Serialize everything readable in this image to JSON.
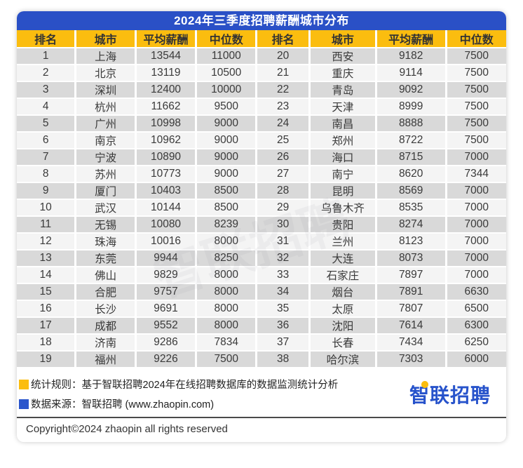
{
  "title": "2024年三季度招聘薪酬城市分布",
  "watermark": "智联招聘",
  "colors": {
    "title_bar_blue": "#2A50C6",
    "header_yellow": "#FBBD0F",
    "row_gray": "#D9D9D9",
    "row_light": "#F4F4F4",
    "logo_blue": "#2753CB"
  },
  "table": {
    "headers": [
      "排名",
      "城市",
      "平均薪酬",
      "中位数",
      "排名",
      "城市",
      "平均薪酬",
      "中位数"
    ],
    "rows": [
      [
        "1",
        "上海",
        "13544",
        "11000",
        "20",
        "西安",
        "9182",
        "7500"
      ],
      [
        "2",
        "北京",
        "13119",
        "10500",
        "21",
        "重庆",
        "9114",
        "7500"
      ],
      [
        "3",
        "深圳",
        "12400",
        "10000",
        "22",
        "青岛",
        "9092",
        "7500"
      ],
      [
        "4",
        "杭州",
        "11662",
        "9500",
        "23",
        "天津",
        "8999",
        "7500"
      ],
      [
        "5",
        "广州",
        "10998",
        "9000",
        "24",
        "南昌",
        "8888",
        "7500"
      ],
      [
        "6",
        "南京",
        "10962",
        "9000",
        "25",
        "郑州",
        "8722",
        "7500"
      ],
      [
        "7",
        "宁波",
        "10890",
        "9000",
        "26",
        "海口",
        "8715",
        "7000"
      ],
      [
        "8",
        "苏州",
        "10773",
        "9000",
        "27",
        "南宁",
        "8620",
        "7344"
      ],
      [
        "9",
        "厦门",
        "10403",
        "8500",
        "28",
        "昆明",
        "8569",
        "7000"
      ],
      [
        "10",
        "武汉",
        "10144",
        "8500",
        "29",
        "乌鲁木齐",
        "8535",
        "7000"
      ],
      [
        "11",
        "无锡",
        "10080",
        "8239",
        "30",
        "贵阳",
        "8274",
        "7000"
      ],
      [
        "12",
        "珠海",
        "10016",
        "8000",
        "31",
        "兰州",
        "8123",
        "7000"
      ],
      [
        "13",
        "东莞",
        "9944",
        "8250",
        "32",
        "大连",
        "8073",
        "7000"
      ],
      [
        "14",
        "佛山",
        "9829",
        "8000",
        "33",
        "石家庄",
        "7897",
        "7000"
      ],
      [
        "15",
        "合肥",
        "9757",
        "8000",
        "34",
        "烟台",
        "7891",
        "6630"
      ],
      [
        "16",
        "长沙",
        "9691",
        "8000",
        "35",
        "太原",
        "7807",
        "6500"
      ],
      [
        "17",
        "成都",
        "9552",
        "8000",
        "36",
        "沈阳",
        "7614",
        "6300"
      ],
      [
        "18",
        "济南",
        "9286",
        "7834",
        "37",
        "长春",
        "7434",
        "6250"
      ],
      [
        "19",
        "福州",
        "9226",
        "7500",
        "38",
        "哈尔滨",
        "7303",
        "6000"
      ]
    ]
  },
  "footer": {
    "rule_note": "统计规则：基于智联招聘2024年在线招聘数据库的数据监测统计分析",
    "source_note": "数据来源：智联招聘 (www.zhaopin.com)",
    "logo_text": "智联招聘",
    "copyright": "Copyright©2024 zhaopin all rights reserved"
  },
  "chart_data": {
    "type": "table",
    "title": "2024年三季度招聘薪酬城市分布",
    "columns": [
      "排名",
      "城市",
      "平均薪酬",
      "中位数"
    ],
    "rows": [
      [
        1,
        "上海",
        13544,
        11000
      ],
      [
        2,
        "北京",
        13119,
        10500
      ],
      [
        3,
        "深圳",
        12400,
        10000
      ],
      [
        4,
        "杭州",
        11662,
        9500
      ],
      [
        5,
        "广州",
        10998,
        9000
      ],
      [
        6,
        "南京",
        10962,
        9000
      ],
      [
        7,
        "宁波",
        10890,
        9000
      ],
      [
        8,
        "苏州",
        10773,
        9000
      ],
      [
        9,
        "厦门",
        10403,
        8500
      ],
      [
        10,
        "武汉",
        10144,
        8500
      ],
      [
        11,
        "无锡",
        10080,
        8239
      ],
      [
        12,
        "珠海",
        10016,
        8000
      ],
      [
        13,
        "东莞",
        9944,
        8250
      ],
      [
        14,
        "佛山",
        9829,
        8000
      ],
      [
        15,
        "合肥",
        9757,
        8000
      ],
      [
        16,
        "长沙",
        9691,
        8000
      ],
      [
        17,
        "成都",
        9552,
        8000
      ],
      [
        18,
        "济南",
        9286,
        7834
      ],
      [
        19,
        "福州",
        9226,
        7500
      ],
      [
        20,
        "西安",
        9182,
        7500
      ],
      [
        21,
        "重庆",
        9114,
        7500
      ],
      [
        22,
        "青岛",
        9092,
        7500
      ],
      [
        23,
        "天津",
        8999,
        7500
      ],
      [
        24,
        "南昌",
        8888,
        7500
      ],
      [
        25,
        "郑州",
        8722,
        7500
      ],
      [
        26,
        "海口",
        8715,
        7000
      ],
      [
        27,
        "南宁",
        8620,
        7344
      ],
      [
        28,
        "昆明",
        8569,
        7000
      ],
      [
        29,
        "乌鲁木齐",
        8535,
        7000
      ],
      [
        30,
        "贵阳",
        8274,
        7000
      ],
      [
        31,
        "兰州",
        8123,
        7000
      ],
      [
        32,
        "大连",
        8073,
        7000
      ],
      [
        33,
        "石家庄",
        7897,
        7000
      ],
      [
        34,
        "烟台",
        7891,
        6630
      ],
      [
        35,
        "太原",
        7807,
        6500
      ],
      [
        36,
        "沈阳",
        7614,
        6300
      ],
      [
        37,
        "长春",
        7434,
        6250
      ],
      [
        38,
        "哈尔滨",
        7303,
        6000
      ]
    ]
  }
}
